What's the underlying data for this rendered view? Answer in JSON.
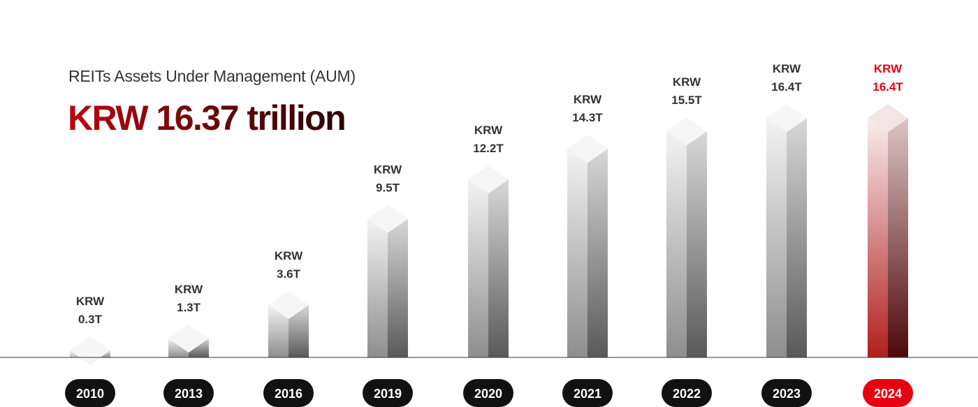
{
  "header": {
    "subtitle": "REITs Assets Under Management (AUM)",
    "headline": "KRW 16.37 trillion"
  },
  "colors": {
    "accent": "#e60012",
    "dark_pill": "#111111",
    "label_dark": "#333333",
    "baseline": "#333333"
  },
  "chart_data": {
    "type": "bar",
    "categories": [
      "2010",
      "2013",
      "2016",
      "2019",
      "2020",
      "2021",
      "2022",
      "2023",
      "2024"
    ],
    "values": [
      0.3,
      1.3,
      3.6,
      9.5,
      12.2,
      14.3,
      15.5,
      16.4,
      16.4
    ],
    "value_labels": [
      [
        "KRW",
        "0.3T"
      ],
      [
        "KRW",
        "1.3T"
      ],
      [
        "KRW",
        "3.6T"
      ],
      [
        "KRW",
        "9.5T"
      ],
      [
        "KRW",
        "12.2T"
      ],
      [
        "KRW",
        "14.3T"
      ],
      [
        "KRW",
        "15.5T"
      ],
      [
        "KRW",
        "16.4T"
      ],
      [
        "KRW",
        "16.4T"
      ]
    ],
    "highlight_index": 8,
    "title": "REITs Assets Under Management (AUM)",
    "xlabel": "",
    "ylabel": "",
    "grid": false
  }
}
